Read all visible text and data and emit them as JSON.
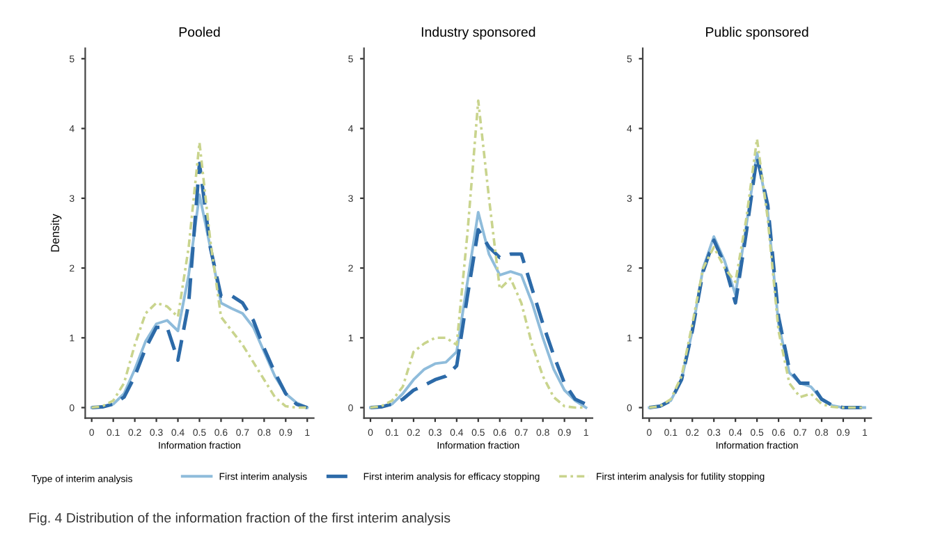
{
  "chart_data": [
    {
      "type": "line",
      "title": "Pooled",
      "xlabel": "Information fraction",
      "ylabel": "Density",
      "legend": "bottom",
      "legend_title": "Type of interim analysis",
      "grid": false,
      "x": [
        0,
        0.05,
        0.1,
        0.15,
        0.2,
        0.25,
        0.3,
        0.35,
        0.4,
        0.45,
        0.5,
        0.55,
        0.6,
        0.65,
        0.7,
        0.75,
        0.8,
        0.85,
        0.9,
        0.95,
        1
      ],
      "xlim": [
        -0.03,
        1.03
      ],
      "xticks": [
        0,
        0.1,
        0.2,
        0.3,
        0.4,
        0.5,
        0.6,
        0.7,
        0.8,
        0.9,
        1
      ],
      "ylim": [
        -0.15,
        5.15
      ],
      "yticks": [
        0,
        1,
        2,
        3,
        4,
        5
      ],
      "series": [
        {
          "name": "First interim analysis",
          "color": "#8fbcdb",
          "line_style": "solid",
          "values": [
            0,
            0.01,
            0.05,
            0.2,
            0.55,
            0.95,
            1.2,
            1.25,
            1.1,
            1.9,
            3.05,
            2.3,
            1.5,
            1.42,
            1.35,
            1.15,
            0.8,
            0.45,
            0.2,
            0.07,
            0
          ]
        },
        {
          "name": "First interim analysis for efficacy stopping",
          "color": "#2c6aa8",
          "line_style": "dashed",
          "values": [
            0,
            0.01,
            0.05,
            0.15,
            0.45,
            0.85,
            1.15,
            1.15,
            0.68,
            1.5,
            3.5,
            2.3,
            1.6,
            1.6,
            1.5,
            1.25,
            0.85,
            0.5,
            0.2,
            0.05,
            0
          ]
        },
        {
          "name": "First interim analysis for futility stopping",
          "color": "#c9d48d",
          "line_style": "dashdot",
          "values": [
            0,
            0.02,
            0.1,
            0.35,
            0.9,
            1.35,
            1.5,
            1.45,
            1.3,
            2.3,
            3.8,
            2.4,
            1.3,
            1.1,
            0.9,
            0.65,
            0.4,
            0.15,
            0.02,
            0,
            0
          ]
        }
      ],
      "annotations": [
        "Fig. 4 Distribution of the information fraction of the first interim analysis"
      ]
    },
    {
      "type": "line",
      "title": "Industry sponsored",
      "xlabel": "Information fraction",
      "grid": false,
      "x": [
        0,
        0.05,
        0.1,
        0.15,
        0.2,
        0.25,
        0.3,
        0.35,
        0.4,
        0.45,
        0.5,
        0.55,
        0.6,
        0.65,
        0.7,
        0.75,
        0.8,
        0.85,
        0.9,
        0.95,
        1
      ],
      "xlim": [
        -0.03,
        1.03
      ],
      "xticks": [
        0,
        0.1,
        0.2,
        0.3,
        0.4,
        0.5,
        0.6,
        0.7,
        0.8,
        0.9,
        1
      ],
      "ylim": [
        -0.15,
        5.15
      ],
      "yticks": [
        0,
        1,
        2,
        3,
        4,
        5
      ],
      "series": [
        {
          "color": "#8fbcdb",
          "line_style": "solid",
          "values": [
            0,
            0.01,
            0.05,
            0.2,
            0.4,
            0.55,
            0.63,
            0.65,
            0.8,
            1.8,
            2.8,
            2.2,
            1.9,
            1.95,
            1.9,
            1.5,
            1.0,
            0.55,
            0.25,
            0.1,
            0
          ]
        },
        {
          "color": "#2c6aa8",
          "line_style": "dashed",
          "values": [
            0,
            0.01,
            0.05,
            0.12,
            0.25,
            0.32,
            0.4,
            0.45,
            0.6,
            1.6,
            2.55,
            2.3,
            2.15,
            2.2,
            2.2,
            1.7,
            1.2,
            0.75,
            0.35,
            0.12,
            0.05
          ]
        },
        {
          "color": "#c9d48d",
          "line_style": "dashdot",
          "values": [
            0,
            0.02,
            0.1,
            0.3,
            0.8,
            0.92,
            1.0,
            1.0,
            0.9,
            2.5,
            4.4,
            3.0,
            1.7,
            1.85,
            1.5,
            0.9,
            0.45,
            0.15,
            0.02,
            0,
            0
          ]
        }
      ]
    },
    {
      "type": "line",
      "title": "Public sponsored",
      "xlabel": "Information fraction",
      "grid": false,
      "x": [
        0,
        0.05,
        0.1,
        0.15,
        0.2,
        0.25,
        0.3,
        0.35,
        0.4,
        0.45,
        0.5,
        0.55,
        0.6,
        0.65,
        0.7,
        0.75,
        0.8,
        0.85,
        0.9,
        0.95,
        1
      ],
      "xlim": [
        -0.03,
        1.03
      ],
      "xticks": [
        0,
        0.1,
        0.2,
        0.3,
        0.4,
        0.5,
        0.6,
        0.7,
        0.8,
        0.9,
        1
      ],
      "ylim": [
        -0.15,
        5.15
      ],
      "yticks": [
        0,
        1,
        2,
        3,
        4,
        5
      ],
      "series": [
        {
          "color": "#8fbcdb",
          "line_style": "solid",
          "values": [
            0,
            0.02,
            0.1,
            0.4,
            1.1,
            2.0,
            2.45,
            2.1,
            1.62,
            2.6,
            3.65,
            2.8,
            1.2,
            0.5,
            0.35,
            0.3,
            0.12,
            0.03,
            0,
            0,
            0
          ]
        },
        {
          "color": "#2c6aa8",
          "line_style": "dashed",
          "values": [
            0,
            0.02,
            0.1,
            0.4,
            1.1,
            1.95,
            2.4,
            2.05,
            1.5,
            2.5,
            3.6,
            2.9,
            1.3,
            0.55,
            0.35,
            0.35,
            0.12,
            0.03,
            0,
            0,
            0
          ]
        },
        {
          "color": "#c9d48d",
          "line_style": "dashdot",
          "values": [
            0,
            0.02,
            0.12,
            0.45,
            1.2,
            2.0,
            2.3,
            2.0,
            1.8,
            2.7,
            3.85,
            2.7,
            1.1,
            0.35,
            0.15,
            0.2,
            0.05,
            0.01,
            0,
            0,
            0
          ]
        }
      ]
    }
  ]
}
